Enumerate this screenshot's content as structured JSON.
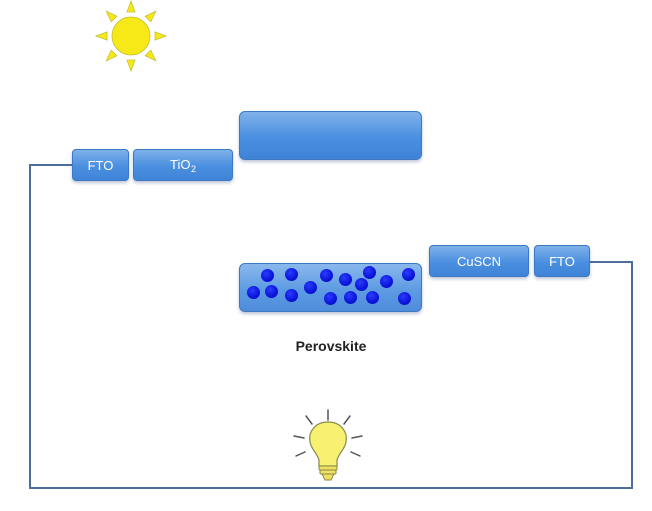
{
  "layers": {
    "fto_left": "FTO",
    "tio2_base": "TiO",
    "tio2_sub": "2",
    "cuscn": "CuSCN",
    "fto_right": "FTO"
  },
  "perovskite": {
    "label": "Perovskite"
  },
  "colors": {
    "layer_fill": "#4a8fe0",
    "particle": "#0a14d8",
    "sun": "#f7e817",
    "bulb": "#f7f070",
    "wire": "#4d6d9a"
  },
  "icons": {
    "sun": "sun-icon",
    "bulb": "light-bulb-icon"
  }
}
